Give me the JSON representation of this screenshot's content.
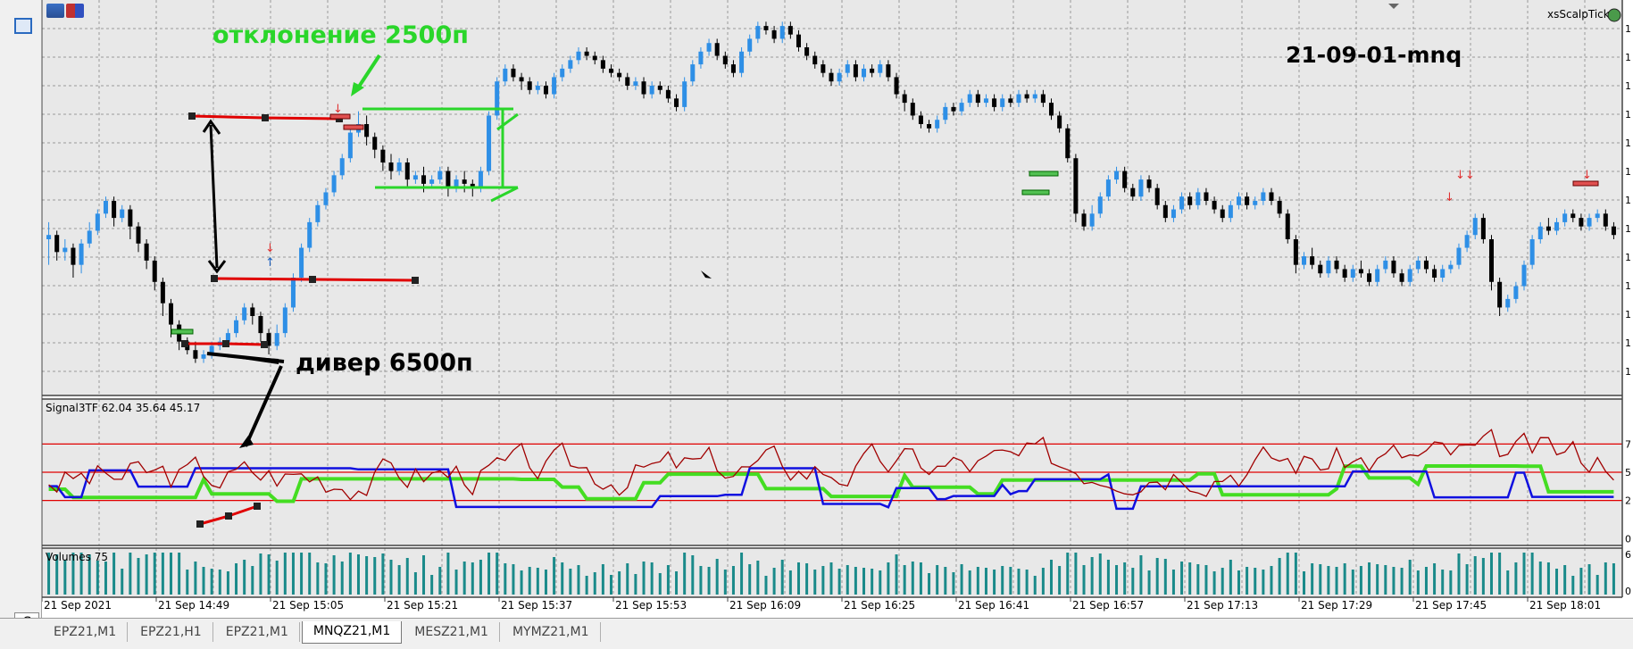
{
  "window": {
    "symbol_label": "xsScalpTick",
    "chart_title": "21-09-01-mnq"
  },
  "annotations": {
    "deviation": "отклонение 2500п",
    "divergence": "дивер 6500п"
  },
  "indicator": {
    "name": "Signal3TF",
    "values": "62.04 35.64 45.17"
  },
  "volumes": {
    "label": "Volumes 75"
  },
  "time_axis": [
    "21 Sep 2021",
    "21 Sep 14:49",
    "21 Sep 15:05",
    "21 Sep 15:21",
    "21 Sep 15:37",
    "21 Sep 15:53",
    "21 Sep 16:09",
    "21 Sep 16:25",
    "21 Sep 16:41",
    "21 Sep 16:57",
    "21 Sep 17:13",
    "21 Sep 17:29",
    "21 Sep 17:45",
    "21 Sep 18:01"
  ],
  "right_axis": {
    "indicator_ticks": [
      "7",
      "5",
      "2",
      "0"
    ],
    "volume_ticks": [
      "6",
      "0"
    ]
  },
  "tabs": [
    {
      "label": "EPZ21,M1",
      "active": false
    },
    {
      "label": "EPZ21,H1",
      "active": false
    },
    {
      "label": "EPZ21,M1",
      "active": false
    },
    {
      "label": "MNQZ21,M1",
      "active": true
    },
    {
      "label": "MESZ21,M1",
      "active": false
    },
    {
      "label": "MYMZ21,M1",
      "active": false
    }
  ],
  "bottom_left_tab": "C",
  "colors": {
    "bull": "#2e8fe6",
    "bear": "#000000",
    "grid": "#9a9a9a",
    "plot_bg": "#e8e8e8",
    "level_red": "#e00000",
    "signal_green": "#44dd22",
    "signal_blue": "#1010e0",
    "signal_darkred": "#a00000",
    "volume_bar": "#1a8a8a",
    "annotation_green": "#2ad62a"
  },
  "chart_data": {
    "type": "candlestick",
    "title": "21-09-01-mnq",
    "symbol": "MNQZ21",
    "timeframe": "M1",
    "x_start": "21 Sep 14:33",
    "x_step_minutes": 1,
    "candles": [
      [
        46,
        47,
        40,
        50
      ],
      [
        47,
        43,
        41,
        48
      ],
      [
        43,
        44,
        41,
        46
      ],
      [
        44,
        40,
        37,
        45
      ],
      [
        40,
        45,
        38,
        46
      ],
      [
        45,
        48,
        44,
        50
      ],
      [
        48,
        52,
        47,
        53
      ],
      [
        52,
        55,
        51,
        56
      ],
      [
        55,
        51,
        49,
        56
      ],
      [
        51,
        53,
        50,
        54
      ],
      [
        53,
        49,
        46,
        54
      ],
      [
        49,
        45,
        43,
        50
      ],
      [
        45,
        41,
        39,
        46
      ],
      [
        41,
        36,
        34,
        42
      ],
      [
        36,
        31,
        28,
        37
      ],
      [
        31,
        26,
        23,
        32
      ],
      [
        26,
        22,
        20,
        27
      ],
      [
        22,
        20,
        19,
        23
      ],
      [
        20,
        18,
        17,
        22
      ],
      [
        18,
        19,
        17,
        20
      ],
      [
        19,
        21,
        18,
        22
      ],
      [
        21,
        22,
        20,
        23
      ],
      [
        22,
        24,
        21,
        25
      ],
      [
        24,
        27,
        23,
        28
      ],
      [
        27,
        30,
        26,
        31
      ],
      [
        30,
        28,
        26,
        31
      ],
      [
        28,
        24,
        22,
        29
      ],
      [
        24,
        21,
        19,
        25
      ],
      [
        21,
        24,
        20,
        26
      ],
      [
        24,
        30,
        23,
        31
      ],
      [
        30,
        37,
        29,
        38
      ],
      [
        37,
        44,
        36,
        45
      ],
      [
        44,
        50,
        43,
        51
      ],
      [
        50,
        54,
        49,
        55
      ],
      [
        54,
        57,
        53,
        58
      ],
      [
        57,
        61,
        56,
        62
      ],
      [
        61,
        65,
        60,
        66
      ],
      [
        65,
        71,
        64,
        72
      ],
      [
        71,
        73,
        70,
        76
      ],
      [
        73,
        70,
        68,
        75
      ],
      [
        70,
        67,
        65,
        71
      ],
      [
        67,
        64,
        62,
        68
      ],
      [
        64,
        62,
        60,
        66
      ],
      [
        62,
        64,
        61,
        65
      ],
      [
        64,
        60,
        58,
        65
      ],
      [
        60,
        61,
        59,
        62
      ],
      [
        61,
        59,
        57,
        63
      ],
      [
        59,
        60,
        58,
        61
      ],
      [
        60,
        62,
        59,
        63
      ],
      [
        62,
        58,
        56,
        63
      ],
      [
        58,
        60,
        57,
        61
      ],
      [
        60,
        59,
        57,
        62
      ],
      [
        59,
        58,
        56,
        60
      ],
      [
        58,
        62,
        57,
        63
      ],
      [
        62,
        75,
        61,
        76
      ],
      [
        75,
        83,
        74,
        84
      ],
      [
        83,
        86,
        82,
        87
      ],
      [
        86,
        84,
        83,
        87
      ],
      [
        84,
        83,
        81,
        85
      ],
      [
        83,
        81,
        80,
        84
      ],
      [
        81,
        82,
        80,
        83
      ],
      [
        82,
        80,
        79,
        83
      ],
      [
        80,
        84,
        79,
        85
      ],
      [
        84,
        86,
        83,
        87
      ],
      [
        86,
        88,
        85,
        89
      ],
      [
        88,
        90,
        87,
        91
      ],
      [
        90,
        89,
        88,
        91
      ],
      [
        89,
        88,
        87,
        90
      ],
      [
        88,
        86,
        85,
        89
      ],
      [
        86,
        85,
        84,
        87
      ],
      [
        85,
        84,
        83,
        86
      ],
      [
        84,
        82,
        81,
        85
      ],
      [
        82,
        83,
        81,
        84
      ],
      [
        83,
        80,
        79,
        84
      ],
      [
        80,
        82,
        79,
        83
      ],
      [
        82,
        81,
        80,
        83
      ],
      [
        81,
        79,
        78,
        82
      ],
      [
        79,
        77,
        76,
        80
      ],
      [
        77,
        83,
        76,
        84
      ],
      [
        83,
        87,
        82,
        88
      ],
      [
        87,
        90,
        86,
        91
      ],
      [
        90,
        92,
        89,
        93
      ],
      [
        92,
        89,
        88,
        93
      ],
      [
        89,
        87,
        86,
        90
      ],
      [
        87,
        85,
        84,
        88
      ],
      [
        85,
        90,
        84,
        91
      ],
      [
        90,
        93,
        89,
        94
      ],
      [
        93,
        96,
        92,
        97
      ],
      [
        96,
        95,
        94,
        97
      ],
      [
        95,
        93,
        92,
        96
      ],
      [
        93,
        96,
        92,
        97
      ],
      [
        96,
        94,
        93,
        97
      ],
      [
        94,
        91,
        90,
        95
      ],
      [
        91,
        89,
        88,
        92
      ],
      [
        89,
        87,
        86,
        90
      ],
      [
        87,
        85,
        84,
        88
      ],
      [
        85,
        83,
        82,
        86
      ],
      [
        83,
        85,
        82,
        86
      ],
      [
        85,
        87,
        84,
        88
      ],
      [
        87,
        84,
        83,
        88
      ],
      [
        84,
        86,
        83,
        87
      ],
      [
        86,
        85,
        84,
        87
      ],
      [
        85,
        87,
        84,
        88
      ],
      [
        87,
        84,
        83,
        88
      ],
      [
        84,
        80,
        79,
        85
      ],
      [
        80,
        78,
        76,
        81
      ],
      [
        78,
        75,
        74,
        79
      ],
      [
        75,
        73,
        72,
        76
      ],
      [
        73,
        72,
        71,
        74
      ],
      [
        72,
        74,
        71,
        75
      ],
      [
        74,
        77,
        73,
        78
      ],
      [
        77,
        76,
        75,
        78
      ],
      [
        76,
        78,
        75,
        79
      ],
      [
        78,
        80,
        77,
        81
      ],
      [
        80,
        78,
        77,
        81
      ],
      [
        78,
        79,
        77,
        80
      ],
      [
        79,
        77,
        76,
        80
      ],
      [
        77,
        79,
        76,
        80
      ],
      [
        79,
        78,
        77,
        80
      ],
      [
        78,
        80,
        77,
        81
      ],
      [
        80,
        79,
        78,
        81
      ],
      [
        79,
        80,
        78,
        81
      ],
      [
        80,
        78,
        77,
        81
      ],
      [
        78,
        75,
        74,
        79
      ],
      [
        75,
        72,
        71,
        76
      ],
      [
        72,
        65,
        64,
        73
      ],
      [
        65,
        52,
        50,
        66
      ],
      [
        52,
        49,
        48,
        53
      ],
      [
        49,
        52,
        48,
        54
      ],
      [
        52,
        56,
        51,
        57
      ],
      [
        56,
        60,
        55,
        61
      ],
      [
        60,
        62,
        59,
        63
      ],
      [
        62,
        58,
        57,
        63
      ],
      [
        58,
        56,
        55,
        59
      ],
      [
        56,
        60,
        55,
        61
      ],
      [
        60,
        58,
        57,
        61
      ],
      [
        58,
        54,
        53,
        59
      ],
      [
        54,
        51,
        50,
        55
      ],
      [
        51,
        53,
        50,
        54
      ],
      [
        53,
        56,
        52,
        57
      ],
      [
        56,
        54,
        53,
        57
      ],
      [
        54,
        57,
        53,
        58
      ],
      [
        57,
        55,
        54,
        58
      ],
      [
        55,
        53,
        52,
        56
      ],
      [
        53,
        51,
        50,
        54
      ],
      [
        51,
        54,
        50,
        55
      ],
      [
        54,
        56,
        53,
        57
      ],
      [
        56,
        54,
        53,
        57
      ],
      [
        54,
        55,
        53,
        56
      ],
      [
        55,
        57,
        54,
        58
      ],
      [
        57,
        55,
        54,
        58
      ],
      [
        55,
        52,
        51,
        56
      ],
      [
        52,
        46,
        45,
        53
      ],
      [
        46,
        40,
        38,
        47
      ],
      [
        40,
        42,
        39,
        43
      ],
      [
        42,
        40,
        39,
        44
      ],
      [
        40,
        38,
        37,
        41
      ],
      [
        38,
        41,
        37,
        42
      ],
      [
        41,
        39,
        38,
        42
      ],
      [
        39,
        37,
        36,
        40
      ],
      [
        37,
        39,
        36,
        40
      ],
      [
        39,
        38,
        37,
        41
      ],
      [
        38,
        36,
        35,
        39
      ],
      [
        36,
        39,
        35,
        40
      ],
      [
        39,
        41,
        38,
        42
      ],
      [
        41,
        38,
        37,
        42
      ],
      [
        38,
        36,
        35,
        39
      ],
      [
        36,
        39,
        35,
        40
      ],
      [
        39,
        41,
        38,
        42
      ],
      [
        41,
        39,
        38,
        42
      ],
      [
        39,
        37,
        36,
        40
      ],
      [
        37,
        39,
        36,
        40
      ],
      [
        39,
        40,
        38,
        41
      ],
      [
        40,
        44,
        39,
        45
      ],
      [
        44,
        47,
        43,
        48
      ],
      [
        47,
        51,
        46,
        52
      ],
      [
        51,
        46,
        45,
        52
      ],
      [
        46,
        36,
        34,
        47
      ],
      [
        36,
        30,
        28,
        37
      ],
      [
        30,
        32,
        29,
        33
      ],
      [
        32,
        35,
        31,
        36
      ],
      [
        35,
        40,
        34,
        41
      ],
      [
        40,
        46,
        39,
        47
      ],
      [
        46,
        49,
        45,
        50
      ],
      [
        49,
        48,
        47,
        51
      ],
      [
        48,
        50,
        47,
        51
      ],
      [
        50,
        52,
        49,
        53
      ],
      [
        52,
        51,
        50,
        53
      ],
      [
        51,
        49,
        48,
        52
      ],
      [
        49,
        51,
        48,
        52
      ],
      [
        51,
        52,
        50,
        53
      ],
      [
        52,
        49,
        48,
        53
      ],
      [
        49,
        47,
        46,
        50
      ]
    ],
    "series": [
      {
        "name": "Signal3TF 1",
        "values": [
          45.2,
          62.04
        ]
      },
      {
        "name": "Signal3TF 2",
        "values": [
          40.1,
          35.64
        ]
      },
      {
        "name": "Signal3TF 3",
        "values": [
          38.0,
          45.17
        ]
      }
    ],
    "indicator_levels": [
      70,
      50,
      30
    ],
    "volume_label": "Volumes 75"
  }
}
